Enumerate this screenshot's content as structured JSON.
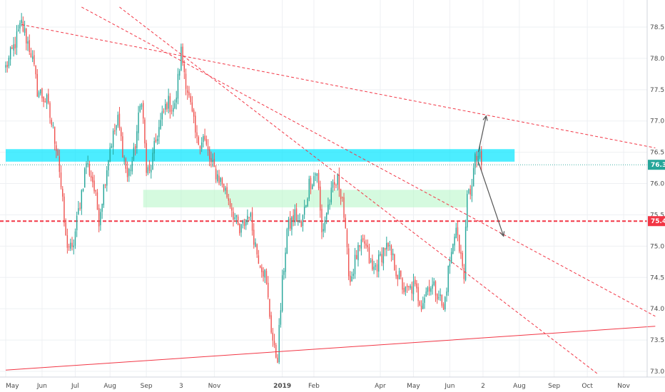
{
  "chart_data": {
    "type": "candlestick",
    "title": "",
    "xlabel": "",
    "ylabel": "",
    "ylim": [
      72.9,
      78.8
    ],
    "y_ticks": [
      "73.0",
      "73.5",
      "74.0",
      "74.5",
      "75.0",
      "75.5",
      "76.0",
      "76.5",
      "77.0",
      "77.5",
      "78.0",
      "78.5"
    ],
    "x_range": [
      0,
      411
    ],
    "x_ticks": [
      {
        "label": "May",
        "x": 0,
        "bold": false
      },
      {
        "label": "Jun",
        "x": 23,
        "bold": false
      },
      {
        "label": "Jul",
        "x": 44,
        "bold": false
      },
      {
        "label": "Aug",
        "x": 66,
        "bold": false
      },
      {
        "label": "Sep",
        "x": 89,
        "bold": false
      },
      {
        "label": "3",
        "x": 111,
        "bold": false
      },
      {
        "label": "Nov",
        "x": 132,
        "bold": false
      },
      {
        "label": "2019",
        "x": 175,
        "bold": true
      },
      {
        "label": "Feb",
        "x": 195,
        "bold": false
      },
      {
        "label": "Apr",
        "x": 237,
        "bold": false
      },
      {
        "label": "May",
        "x": 258,
        "bold": false
      },
      {
        "label": "Jun",
        "x": 281,
        "bold": false
      },
      {
        "label": "2",
        "x": 302,
        "bold": false
      },
      {
        "label": "Aug",
        "x": 325,
        "bold": false
      },
      {
        "label": "Sep",
        "x": 347,
        "bold": false
      },
      {
        "label": "Oct",
        "x": 368,
        "bold": false
      },
      {
        "label": "Nov",
        "x": 391,
        "bold": false
      }
    ],
    "price_tags": [
      {
        "label": "76.3",
        "value": 76.3,
        "color": "#26a69a"
      },
      {
        "label": "75.4",
        "value": 75.4,
        "color": "#f23645"
      }
    ],
    "colors": {
      "up": "#26a69a",
      "down": "#ef5350",
      "resistance_zone": "#00e5ff",
      "support_zone": "#b9f6ca",
      "trendline": "#f23645",
      "projection_arrow": "#555555",
      "grid": "#eef0f3"
    },
    "zones": [
      {
        "x0": 0,
        "x1": 322,
        "y0": 76.35,
        "y1": 76.55,
        "color": "#00e5ff",
        "opacity": 0.7
      },
      {
        "x0": 87,
        "x1": 292,
        "y0": 75.62,
        "y1": 75.9,
        "color": "#b9f6ca",
        "opacity": 0.6
      }
    ],
    "horizontal_lines": [
      {
        "value": 75.4,
        "color": "#f23645",
        "dash": "5,3",
        "width": 2
      },
      {
        "value": 76.3,
        "color": "#26a69a",
        "dash": "1,2",
        "width": 0.8
      }
    ],
    "trendlines": [
      {
        "x1": 10,
        "y1": 78.54,
        "x2": 411,
        "y2": 76.57,
        "dash": "4,3"
      },
      {
        "x1": 48,
        "y1": 78.82,
        "x2": 411,
        "y2": 73.88,
        "dash": "4,3"
      },
      {
        "x1": 72,
        "y1": 78.82,
        "x2": 375,
        "y2": 72.95,
        "dash": "4,3"
      },
      {
        "x1": 0,
        "y1": 73.02,
        "x2": 411,
        "y2": 73.72,
        "dash": ""
      }
    ],
    "arrows": [
      {
        "x1": 299,
        "y1": 76.5,
        "x2": 304,
        "y2": 77.08
      },
      {
        "x1": 299,
        "y1": 76.35,
        "x2": 315,
        "y2": 75.16
      }
    ],
    "anchors": [
      [
        0,
        77.85
      ],
      [
        4,
        78.1
      ],
      [
        10,
        78.55
      ],
      [
        16,
        78.1
      ],
      [
        20,
        77.5
      ],
      [
        26,
        77.3
      ],
      [
        33,
        76.5
      ],
      [
        38,
        75.1
      ],
      [
        42,
        74.9
      ],
      [
        46,
        75.55
      ],
      [
        51,
        76.35
      ],
      [
        55,
        76.05
      ],
      [
        59,
        75.45
      ],
      [
        66,
        76.6
      ],
      [
        71,
        77.0
      ],
      [
        77,
        76.1
      ],
      [
        81,
        76.45
      ],
      [
        86,
        77.4
      ],
      [
        89,
        76.2
      ],
      [
        91,
        76.15
      ],
      [
        96,
        76.8
      ],
      [
        102,
        77.3
      ],
      [
        107,
        77.2
      ],
      [
        111,
        78.1
      ],
      [
        116,
        77.35
      ],
      [
        121,
        76.65
      ],
      [
        125,
        76.75
      ],
      [
        130,
        76.3
      ],
      [
        137,
        76.0
      ],
      [
        142,
        75.7
      ],
      [
        148,
        75.2
      ],
      [
        154,
        75.55
      ],
      [
        159,
        74.9
      ],
      [
        164,
        74.55
      ],
      [
        168,
        73.7
      ],
      [
        170,
        73.3
      ],
      [
        172,
        73.25
      ],
      [
        175,
        74.4
      ],
      [
        178,
        75.25
      ],
      [
        183,
        75.5
      ],
      [
        187,
        75.3
      ],
      [
        192,
        76.0
      ],
      [
        197,
        76.2
      ],
      [
        200,
        75.2
      ],
      [
        203,
        75.55
      ],
      [
        207,
        75.9
      ],
      [
        210,
        76.05
      ],
      [
        213,
        75.8
      ],
      [
        216,
        74.85
      ],
      [
        218,
        74.45
      ],
      [
        222,
        74.85
      ],
      [
        227,
        75.05
      ],
      [
        232,
        74.6
      ],
      [
        236,
        74.75
      ],
      [
        240,
        75.0
      ],
      [
        244,
        74.85
      ],
      [
        248,
        74.55
      ],
      [
        253,
        74.25
      ],
      [
        258,
        74.35
      ],
      [
        263,
        74.1
      ],
      [
        268,
        74.4
      ],
      [
        274,
        74.25
      ],
      [
        277,
        73.95
      ],
      [
        280,
        74.6
      ],
      [
        283,
        75.0
      ],
      [
        285,
        75.4
      ],
      [
        287,
        74.9
      ],
      [
        290,
        74.6
      ],
      [
        292,
        75.75
      ],
      [
        294,
        75.9
      ],
      [
        297,
        76.35
      ],
      [
        299,
        76.45
      ],
      [
        301,
        76.3
      ]
    ]
  }
}
